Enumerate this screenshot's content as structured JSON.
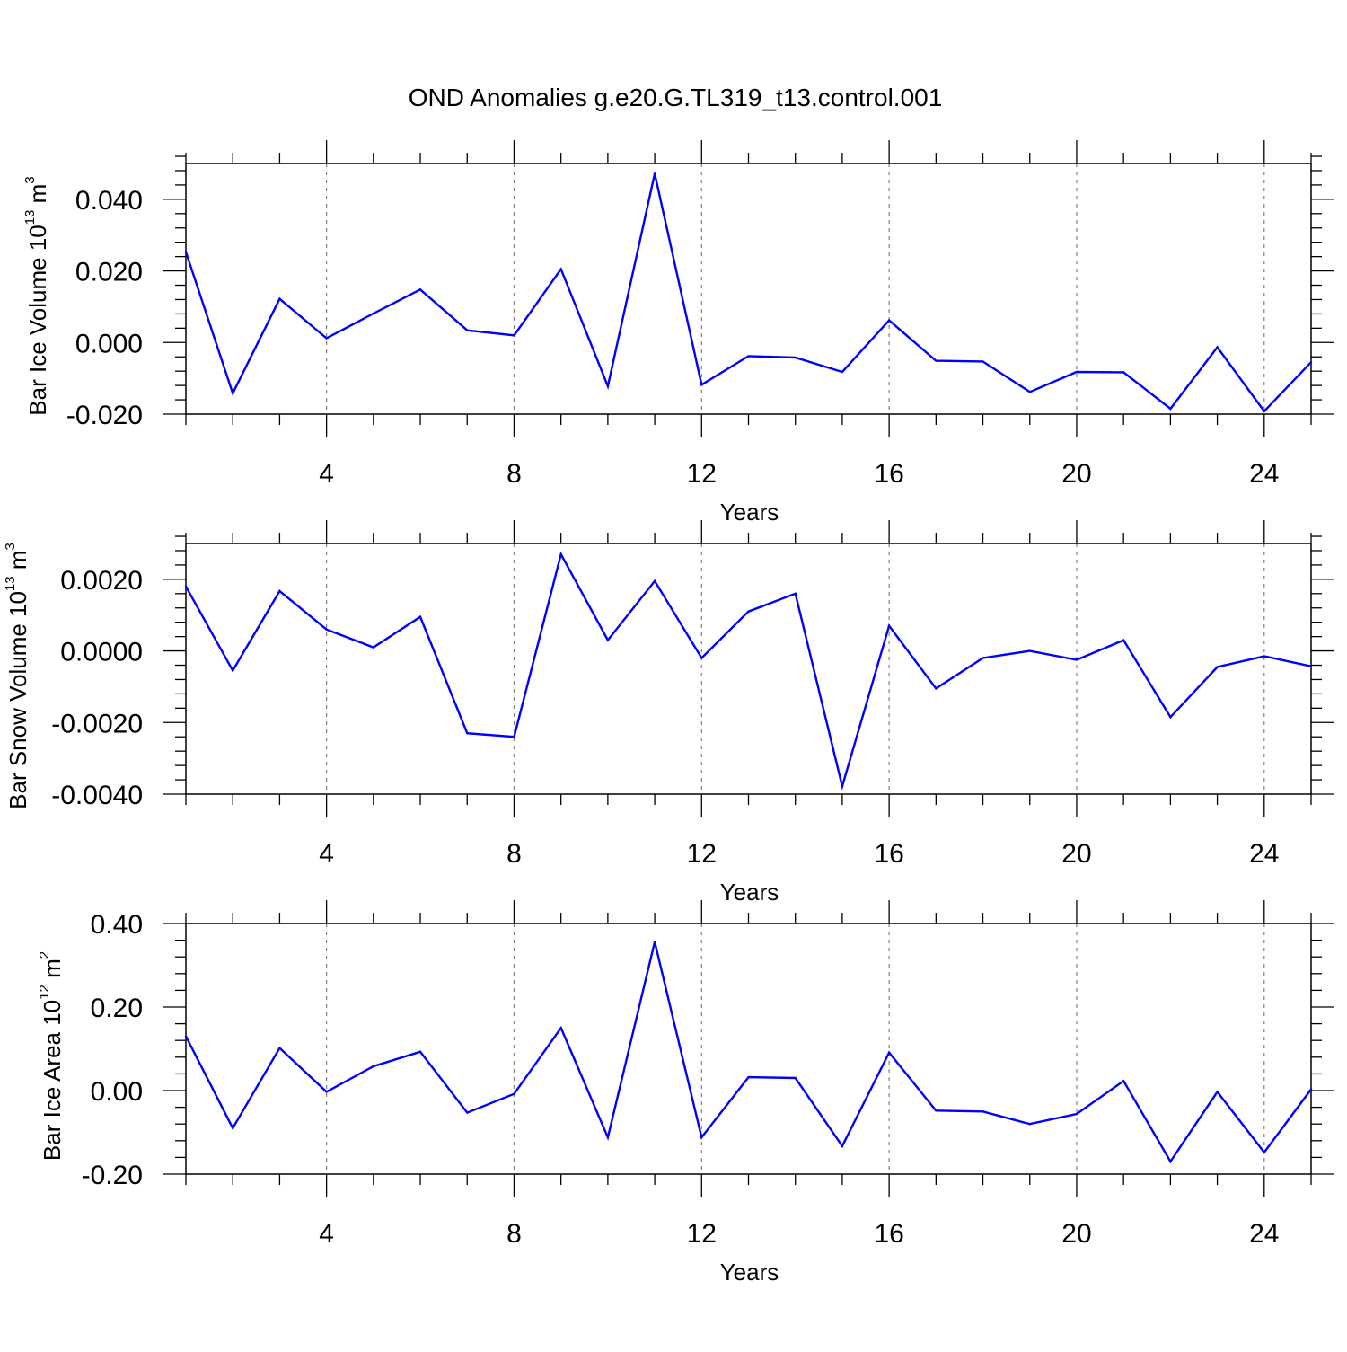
{
  "figure": {
    "title": "OND Anomalies g.e20.G.TL319_t13.control.001"
  },
  "colors": {
    "line": "#0000ff",
    "axis": "#000000",
    "grid": "#808080",
    "background": "#ffffff"
  },
  "chart_data": [
    {
      "type": "line",
      "xlabel": "Years",
      "ylabel": {
        "text": "Bar Ice Volume 10",
        "exponent": "13",
        "unit": " m",
        "unit_exponent": "3"
      },
      "xlim": [
        1,
        25
      ],
      "ylim": [
        -0.02,
        0.05
      ],
      "xticks": [
        4,
        8,
        12,
        16,
        20,
        24
      ],
      "xtick_labels": [
        "4",
        "8",
        "12",
        "16",
        "20",
        "24"
      ],
      "yticks": [
        -0.02,
        0.0,
        0.02,
        0.04
      ],
      "ytick_labels": [
        "-0.020",
        "0.000",
        "0.020",
        "0.040"
      ],
      "grid": "vertical dashed at major x ticks",
      "series": [
        {
          "name": "Bar Ice Volume",
          "x": [
            1,
            2,
            3,
            4,
            5,
            6,
            7,
            8,
            9,
            10,
            11,
            12,
            13,
            14,
            15,
            16,
            17,
            18,
            19,
            20,
            21,
            22,
            23,
            24,
            25
          ],
          "values": [
            0.0253,
            -0.0142,
            0.0122,
            0.0012,
            0.0081,
            0.0148,
            0.0034,
            0.002,
            0.0205,
            -0.0122,
            0.0472,
            -0.0118,
            -0.0038,
            -0.0042,
            -0.0082,
            0.0062,
            -0.0051,
            -0.0053,
            -0.0138,
            -0.0082,
            -0.0083,
            -0.0185,
            -0.0013,
            -0.0192,
            -0.0055
          ]
        }
      ]
    },
    {
      "type": "line",
      "xlabel": "Years",
      "ylabel": {
        "text": "Bar Snow Volume 10",
        "exponent": "13",
        "unit": " m",
        "unit_exponent": "3"
      },
      "xlim": [
        1,
        25
      ],
      "ylim": [
        -0.004,
        0.003
      ],
      "xticks": [
        4,
        8,
        12,
        16,
        20,
        24
      ],
      "xtick_labels": [
        "4",
        "8",
        "12",
        "16",
        "20",
        "24"
      ],
      "yticks": [
        -0.004,
        -0.002,
        0.0,
        0.002
      ],
      "ytick_labels": [
        "-0.0040",
        "-0.0020",
        "0.0000",
        "0.0020"
      ],
      "grid": "vertical dashed at major x ticks",
      "series": [
        {
          "name": "Bar Snow Volume",
          "x": [
            1,
            2,
            3,
            4,
            5,
            6,
            7,
            8,
            9,
            10,
            11,
            12,
            13,
            14,
            15,
            16,
            17,
            18,
            19,
            20,
            21,
            22,
            23,
            24,
            25
          ],
          "values": [
            0.0018,
            -0.00055,
            0.00167,
            0.0006,
            0.0001,
            0.00095,
            -0.0023,
            -0.0024,
            0.0027,
            0.0003,
            0.00195,
            -0.0002,
            0.0011,
            0.0016,
            -0.00378,
            0.0007,
            -0.00105,
            -0.0002,
            0.0,
            -0.00025,
            0.0003,
            -0.00185,
            -0.00045,
            -0.00015,
            -0.00043
          ]
        }
      ]
    },
    {
      "type": "line",
      "xlabel": "Years",
      "ylabel": {
        "text": "Bar Ice Area 10",
        "exponent": "12",
        "unit": " m",
        "unit_exponent": "2"
      },
      "xlim": [
        1,
        25
      ],
      "ylim": [
        -0.2,
        0.4
      ],
      "xticks": [
        4,
        8,
        12,
        16,
        20,
        24
      ],
      "xtick_labels": [
        "4",
        "8",
        "12",
        "16",
        "20",
        "24"
      ],
      "yticks": [
        -0.2,
        0.0,
        0.2,
        0.4
      ],
      "ytick_labels": [
        "-0.20",
        "0.00",
        "0.20",
        "0.40"
      ],
      "grid": "vertical dashed at major x ticks",
      "series": [
        {
          "name": "Bar Ice Area",
          "x": [
            1,
            2,
            3,
            4,
            5,
            6,
            7,
            8,
            9,
            10,
            11,
            12,
            13,
            14,
            15,
            16,
            17,
            18,
            19,
            20,
            21,
            22,
            23,
            24,
            25
          ],
          "values": [
            0.13,
            -0.09,
            0.102,
            -0.003,
            0.058,
            0.093,
            -0.053,
            -0.008,
            0.15,
            -0.112,
            0.356,
            -0.112,
            0.032,
            0.03,
            -0.133,
            0.091,
            -0.048,
            -0.05,
            -0.08,
            -0.056,
            0.023,
            -0.17,
            -0.003,
            -0.148,
            0.003
          ]
        }
      ]
    }
  ]
}
